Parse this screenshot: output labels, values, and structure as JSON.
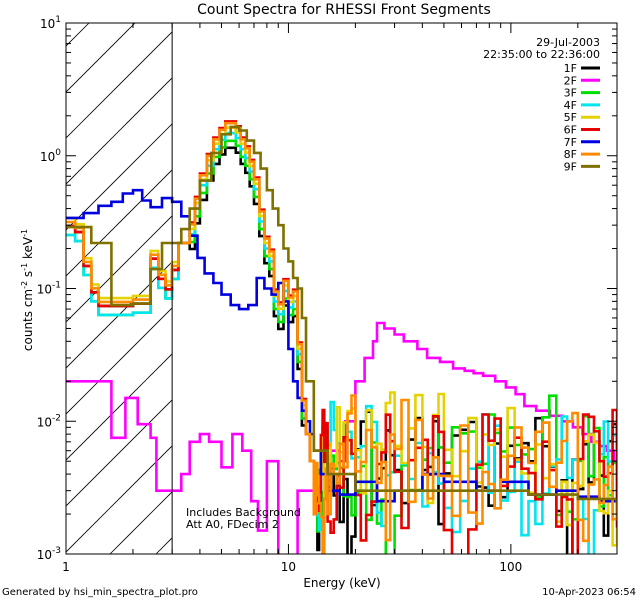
{
  "chart_data": {
    "type": "line",
    "title": "Count Spectra for RHESSI Front Segments",
    "xlabel": "Energy (keV)",
    "ylabel": "counts cm",
    "ylabel_sup1": "-2",
    "ylabel_mid": " s",
    "ylabel_sup2": "-1",
    "ylabel_end": " keV",
    "ylabel_sup3": "-1",
    "xscale": "log",
    "yscale": "log",
    "xlim": [
      1,
      300
    ],
    "ylim": [
      0.001,
      10
    ],
    "x_ticks": [
      {
        "v": 1,
        "label": "1"
      },
      {
        "v": 10,
        "label": "10"
      },
      {
        "v": 100,
        "label": "100"
      }
    ],
    "y_ticks": [
      {
        "v": 0.001,
        "base": "10",
        "exp": "-3"
      },
      {
        "v": 0.01,
        "base": "10",
        "exp": "-2"
      },
      {
        "v": 0.1,
        "base": "10",
        "exp": "-1"
      },
      {
        "v": 1,
        "base": "10",
        "exp": "0"
      },
      {
        "v": 10,
        "base": "10",
        "exp": "1"
      }
    ],
    "hatched_region": {
      "x_from": 1,
      "x_to": 3
    },
    "date": "29-Jul-2003",
    "time_range": "22:35:00 to 22:36:00",
    "annotations": [
      "Includes Background",
      "Att A0, FDecim 2"
    ],
    "series": [
      {
        "name": "1F",
        "color": "#000000",
        "scale": 0.62,
        "noise_seed": 11
      },
      {
        "name": "2F",
        "color": "#ff00ff",
        "scale": 1.0,
        "noise_seed": 0
      },
      {
        "name": "3F",
        "color": "#00e000",
        "scale": 0.7,
        "noise_seed": 23
      },
      {
        "name": "4F",
        "color": "#00e5ee",
        "scale": 0.8,
        "noise_seed": 37
      },
      {
        "name": "5F",
        "color": "#e6d200",
        "scale": 0.88,
        "noise_seed": 41
      },
      {
        "name": "6F",
        "color": "#e80000",
        "scale": 0.98,
        "noise_seed": 53
      },
      {
        "name": "7F",
        "color": "#0000e0",
        "scale": 1.0,
        "noise_seed": 0
      },
      {
        "name": "8F",
        "color": "#ff8c00",
        "scale": 0.95,
        "noise_seed": 61
      },
      {
        "name": "9F",
        "color": "#7f7000",
        "scale": 1.0,
        "noise_seed": 67
      }
    ],
    "base_spectrum": {
      "x": [
        1.0,
        1.1,
        1.2,
        1.3,
        1.4,
        1.55,
        1.7,
        1.85,
        2.0,
        2.2,
        2.4,
        2.6,
        2.8,
        3.0,
        3.2,
        3.4,
        3.6,
        3.8,
        4.0,
        4.3,
        4.6,
        4.9,
        5.2,
        5.5,
        5.8,
        6.1,
        6.4,
        6.7,
        7.0,
        7.4,
        7.8,
        8.2,
        8.6,
        9.0,
        9.5,
        10.0,
        10.5,
        11.0,
        11.5,
        12.0,
        12.5,
        13.0,
        14.0,
        15.0,
        17.0,
        20.0,
        25.0,
        30.0,
        40.0,
        50.0,
        70.0,
        90.0,
        120.0,
        160.0,
        200.0,
        250.0,
        300.0
      ],
      "y": [
        0.3,
        0.27,
        0.15,
        0.095,
        0.075,
        0.075,
        0.075,
        0.075,
        0.078,
        0.078,
        0.17,
        0.12,
        0.1,
        0.14,
        0.22,
        0.22,
        0.32,
        0.5,
        0.75,
        1.05,
        1.4,
        1.65,
        1.85,
        1.85,
        1.7,
        1.4,
        1.2,
        0.95,
        0.7,
        0.4,
        0.25,
        0.2,
        0.1,
        0.08,
        0.12,
        0.09,
        0.1,
        0.04,
        0.015,
        0.008,
        0.005,
        0.004,
        0.0035,
        0.003,
        0.003,
        0.003,
        0.003,
        0.003,
        0.0032,
        0.003,
        0.0032,
        0.003,
        0.0028,
        0.0028,
        0.0026,
        0.0025,
        0.0025
      ]
    },
    "series_2F": {
      "x": [
        1.0,
        1.4,
        1.6,
        1.75,
        1.85,
        2.1,
        2.25,
        2.4,
        2.55,
        2.75,
        3.0,
        3.3,
        3.6,
        4.0,
        4.4,
        5.0,
        5.6,
        6.2,
        6.8,
        7.3,
        8.0,
        9.0,
        9.8,
        11.0,
        13.0,
        14.5,
        15.5,
        17.0,
        18.0,
        20.0,
        22.0,
        24.0,
        25.0,
        27.0,
        30.0,
        33.0,
        38.0,
        42.0,
        48.0,
        55.0,
        62.0,
        68.0,
        75.0,
        85.0,
        95.0,
        105.0,
        115.0,
        130.0,
        150.0,
        170.0,
        190.0,
        210.0,
        230.0,
        250.0,
        270.0,
        290.0,
        300.0
      ],
      "y": [
        0.02,
        0.02,
        0.0075,
        0.0075,
        0.015,
        0.0095,
        0.0095,
        0.0075,
        0.003,
        0.003,
        0.003,
        0.004,
        0.007,
        0.008,
        0.007,
        0.0045,
        0.008,
        0.006,
        0.0025,
        0.0015,
        0.005,
        0.0008,
        0.0008,
        0.003,
        0.004,
        0.003,
        0.006,
        0.005,
        0.01,
        0.02,
        0.03,
        0.04,
        0.055,
        0.05,
        0.045,
        0.04,
        0.035,
        0.03,
        0.028,
        0.025,
        0.024,
        0.023,
        0.022,
        0.02,
        0.018,
        0.016,
        0.013,
        0.012,
        0.011,
        0.01,
        0.009,
        0.008,
        0.007,
        0.0065,
        0.006,
        0.005,
        0.004
      ]
    },
    "series_7F": {
      "x": [
        1.0,
        1.2,
        1.4,
        1.6,
        1.8,
        2.0,
        2.2,
        2.4,
        2.7,
        3.0,
        3.3,
        3.6,
        3.9,
        4.2,
        4.6,
        5.0,
        5.5,
        6.0,
        6.6,
        7.2,
        7.8,
        8.4,
        9.0,
        9.5,
        10.0,
        10.5,
        11.0,
        11.5,
        12.0,
        12.5,
        13.0,
        14.0,
        15.0,
        17.0,
        20.0,
        25.0,
        30.0,
        40.0,
        50.0,
        70.0,
        90.0,
        120.0,
        160.0,
        200.0,
        250.0,
        300.0
      ],
      "y": [
        0.34,
        0.37,
        0.42,
        0.45,
        0.52,
        0.55,
        0.46,
        0.41,
        0.48,
        0.45,
        0.35,
        0.25,
        0.17,
        0.13,
        0.11,
        0.09,
        0.075,
        0.07,
        0.075,
        0.12,
        0.1,
        0.09,
        0.11,
        0.08,
        0.035,
        0.02,
        0.015,
        0.012,
        0.01,
        0.008,
        0.006,
        0.004,
        0.003,
        0.0028,
        0.0035,
        0.0025,
        0.003,
        0.004,
        0.0035,
        0.003,
        0.0035,
        0.0028,
        0.003,
        0.0027,
        0.0025,
        0.0024
      ]
    },
    "series_9F": {
      "x": [
        1.0,
        1.3,
        1.6,
        2.0,
        2.4,
        2.7,
        3.0,
        3.3,
        3.6,
        4.0,
        4.5,
        5.0,
        5.5,
        6.0,
        6.5,
        7.0,
        7.5,
        8.0,
        8.5,
        9.0,
        9.5,
        10.0,
        10.5,
        11.0,
        11.5,
        12.0,
        13.0,
        15.0,
        20.0,
        30.0,
        50.0,
        80.0,
        120.0,
        200.0,
        300.0
      ],
      "y": [
        0.29,
        0.22,
        0.075,
        0.077,
        0.14,
        0.22,
        0.22,
        0.28,
        0.4,
        0.65,
        1.05,
        1.45,
        1.65,
        1.55,
        1.3,
        1.05,
        0.8,
        0.55,
        0.4,
        0.3,
        0.2,
        0.16,
        0.12,
        0.1,
        0.06,
        0.02,
        0.006,
        0.004,
        0.003,
        0.003,
        0.003,
        0.003,
        0.0028,
        0.0026,
        0.0025
      ]
    }
  },
  "footer": {
    "generated_by": "Generated by hsi_min_spectra_plot.pro",
    "timestamp": "10-Apr-2023 06:54"
  }
}
